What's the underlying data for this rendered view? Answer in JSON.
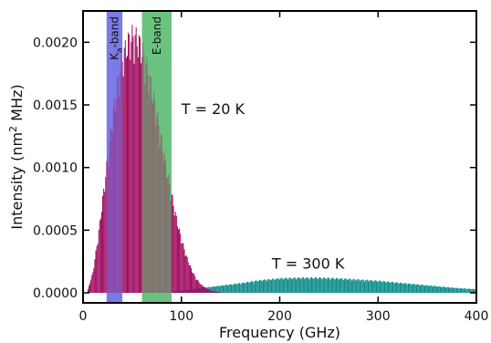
{
  "chart_data": {
    "type": "bar",
    "xlabel": "Frequency (GHz)",
    "ylabel_main": "Intensity (nm",
    "ylabel_sup": "2",
    "ylabel_tail": " MHz)",
    "xlim": [
      0,
      400
    ],
    "ylim": [
      -8e-05,
      0.00225
    ],
    "x_ticks": [
      0,
      100,
      200,
      300,
      400
    ],
    "x_tick_labels": [
      "0",
      "100",
      "200",
      "300",
      "400"
    ],
    "y_ticks": [
      0,
      0.0005,
      0.001,
      0.0015,
      0.002
    ],
    "y_tick_labels": [
      "0.0000",
      "0.0005",
      "0.0010",
      "0.0015",
      "0.0020"
    ],
    "grid": false,
    "bands": [
      {
        "label_main": "K",
        "label_sub": "a",
        "label_tail": "-band",
        "x_range": [
          24,
          40
        ],
        "color": "#7b7be6"
      },
      {
        "label_main": "E-band",
        "label_sub": "",
        "label_tail": "",
        "x_range": [
          60,
          90
        ],
        "color": "#6cc27e"
      }
    ],
    "series": [
      {
        "temperature_K": 20,
        "color": "#9e0b5e",
        "x": [
          5,
          10,
          15,
          20,
          25,
          30,
          35,
          40,
          45,
          50,
          55,
          60,
          65,
          70,
          75,
          80,
          85,
          90,
          95,
          100,
          105,
          110,
          115,
          120,
          125,
          130,
          135,
          140
        ],
        "values": [
          3e-05,
          0.00017,
          0.00045,
          0.00078,
          0.00112,
          0.00145,
          0.00173,
          0.00195,
          0.00208,
          0.00214,
          0.00212,
          0.00203,
          0.00188,
          0.0017,
          0.00149,
          0.00126,
          0.00103,
          0.00082,
          0.00062,
          0.00045,
          0.00031,
          0.0002,
          0.00012,
          7e-05,
          4e-05,
          2e-05,
          1e-05,
          4e-06
        ]
      },
      {
        "temperature_K": 300,
        "color": "#0b8c8a",
        "x": [
          80,
          100,
          120,
          140,
          160,
          180,
          200,
          220,
          240,
          260,
          280,
          300,
          320,
          340,
          360,
          380,
          400
        ],
        "values": [
          0.0,
          2e-05,
          4e-05,
          6e-05,
          8e-05,
          0.000105,
          0.00012,
          0.000125,
          0.000125,
          0.00012,
          0.00011,
          0.0001,
          8.5e-05,
          7e-05,
          5.5e-05,
          4e-05,
          3e-05
        ]
      }
    ],
    "annotations": [
      {
        "text": "T = 20 K",
        "x": 100,
        "y": 0.00147
      },
      {
        "text": "T = 300 K",
        "x": 192,
        "y": 0.000235
      }
    ]
  }
}
